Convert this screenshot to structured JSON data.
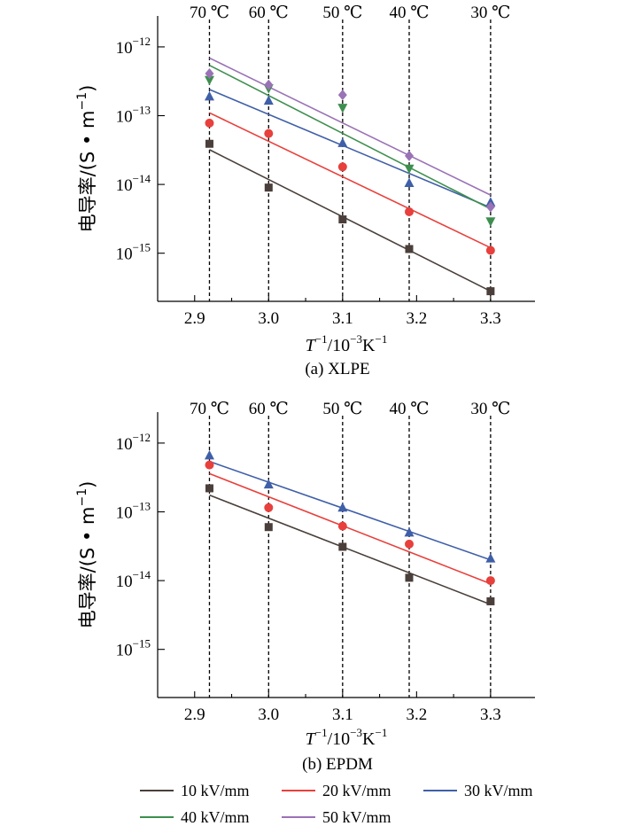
{
  "chart_data": [
    {
      "type": "scatter",
      "panel": "a",
      "caption": "(a)  XLPE",
      "xlabel": {
        "base": "T",
        "exp1": "−1",
        "mid": "/10",
        "exp2": "−3",
        "unit": "K",
        "exp3": "−1"
      },
      "ylabel": {
        "main": "电导率/(S • m",
        "exp": "−1",
        "close": ")"
      },
      "xlim": [
        2.85,
        3.36
      ],
      "ylim_log10": [
        -15.7,
        -11.55
      ],
      "xticks": [
        "2.9",
        "3.0",
        "3.1",
        "3.2",
        "3.3"
      ],
      "xtick_values": [
        2.9,
        3.0,
        3.1,
        3.2,
        3.3
      ],
      "yticks": [
        {
          "base": "10",
          "exp": "−12",
          "log": -12
        },
        {
          "base": "10",
          "exp": "−13",
          "log": -13
        },
        {
          "base": "10",
          "exp": "−14",
          "log": -14
        },
        {
          "base": "10",
          "exp": "−15",
          "log": -15
        }
      ],
      "temperature_lines": [
        {
          "x": 2.92,
          "label": "70 ℃"
        },
        {
          "x": 3.0,
          "label": "60 ℃"
        },
        {
          "x": 3.1,
          "label": "50 ℃"
        },
        {
          "x": 3.19,
          "label": "40 ℃"
        },
        {
          "x": 3.3,
          "label": "30 ℃"
        }
      ],
      "x": [
        2.92,
        3.0,
        3.1,
        3.19,
        3.3
      ],
      "series": [
        {
          "name": "10 kV/mm",
          "color": "#4a3f3b",
          "marker": "square",
          "values": [
            3.9e-14,
            9e-15,
            3.1e-15,
            1.15e-15,
            2.8e-16
          ],
          "fit": [
            3.2e-14,
            2.8e-16
          ]
        },
        {
          "name": "20 kV/mm",
          "color": "#e8403c",
          "marker": "circle",
          "values": [
            7.8e-14,
            5.5e-14,
            1.8e-14,
            4e-15,
            1.1e-15
          ],
          "fit": [
            1.1e-13,
            1.2e-15
          ]
        },
        {
          "name": "30 kV/mm",
          "color": "#3f5fa8",
          "marker": "triangle-up",
          "values": [
            1.9e-13,
            1.65e-13,
            4e-14,
            1.05e-14,
            5.5e-15
          ],
          "fit": [
            2.4e-13,
            4.6e-15
          ]
        },
        {
          "name": "40 kV/mm",
          "color": "#3e8f4f",
          "marker": "triangle-down",
          "values": [
            3.3e-13,
            2.5e-13,
            1.3e-13,
            1.7e-14,
            2.9e-15
          ],
          "fit": [
            5.4e-13,
            4.4e-15
          ]
        },
        {
          "name": "50 kV/mm",
          "color": "#9a72b6",
          "marker": "diamond",
          "values": [
            4.1e-13,
            2.8e-13,
            2e-13,
            2.6e-14,
            4.7e-15
          ],
          "fit": [
            6.9e-13,
            7e-15
          ]
        }
      ]
    },
    {
      "type": "scatter",
      "panel": "b",
      "caption": "(b)  EPDM",
      "xlabel": {
        "base": "T",
        "exp1": "−1",
        "mid": "/10",
        "exp2": "−3",
        "unit": "K",
        "exp3": "−1"
      },
      "ylabel": {
        "main": "电导率/(S • m",
        "exp": "−1",
        "close": ")"
      },
      "xlim": [
        2.85,
        3.36
      ],
      "ylim_log10": [
        -15.7,
        -11.55
      ],
      "xticks": [
        "2.9",
        "3.0",
        "3.1",
        "3.2",
        "3.3"
      ],
      "xtick_values": [
        2.9,
        3.0,
        3.1,
        3.2,
        3.3
      ],
      "yticks": [
        {
          "base": "10",
          "exp": "−12",
          "log": -12
        },
        {
          "base": "10",
          "exp": "−13",
          "log": -13
        },
        {
          "base": "10",
          "exp": "−14",
          "log": -14
        },
        {
          "base": "10",
          "exp": "−15",
          "log": -15
        }
      ],
      "temperature_lines": [
        {
          "x": 2.92,
          "label": "70 ℃"
        },
        {
          "x": 3.0,
          "label": "60 ℃"
        },
        {
          "x": 3.1,
          "label": "50 ℃"
        },
        {
          "x": 3.19,
          "label": "40 ℃"
        },
        {
          "x": 3.3,
          "label": "30 ℃"
        }
      ],
      "x": [
        2.92,
        3.0,
        3.1,
        3.19,
        3.3
      ],
      "series": [
        {
          "name": "10 kV/mm",
          "color": "#4a3f3b",
          "marker": "square",
          "values": [
            2.2e-13,
            6e-14,
            3.1e-14,
            1.1e-14,
            5e-15
          ],
          "fit": [
            1.75e-13,
            4.5e-15
          ]
        },
        {
          "name": "20 kV/mm",
          "color": "#e8403c",
          "marker": "circle",
          "values": [
            4.8e-13,
            1.15e-13,
            6.2e-14,
            3.4e-14,
            1e-14
          ],
          "fit": [
            3.6e-13,
            9e-15
          ]
        },
        {
          "name": "30 kV/mm",
          "color": "#3f5fa8",
          "marker": "triangle-up",
          "values": [
            6.6e-13,
            2.5e-13,
            1.15e-13,
            5e-14,
            2.1e-14
          ],
          "fit": [
            5.4e-13,
            2e-14
          ]
        }
      ]
    }
  ],
  "legend": [
    {
      "label": "10 kV/mm",
      "color": "#4a3f3b"
    },
    {
      "label": "20 kV/mm",
      "color": "#e8403c"
    },
    {
      "label": "30 kV/mm",
      "color": "#3f5fa8"
    },
    {
      "label": "40 kV/mm",
      "color": "#3e8f4f"
    },
    {
      "label": "50 kV/mm",
      "color": "#9a72b6"
    }
  ]
}
